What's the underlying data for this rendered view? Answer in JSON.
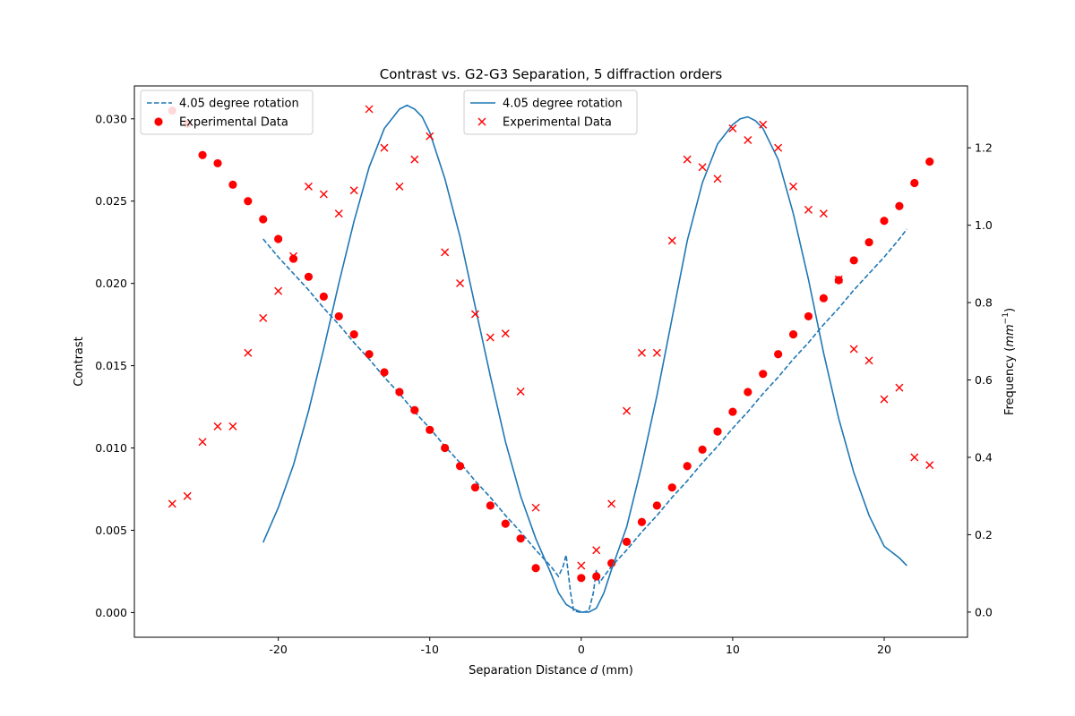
{
  "chart_data": {
    "type": "scatter",
    "title": "Contrast vs. G2-G3 Separation, 5 diffraction orders",
    "xlabel": "Separation Distance d (mm)",
    "ylabel_left": "Contrast",
    "ylabel_right": "Frequency (mm^-1)",
    "xlim": [
      -29.5,
      25.5
    ],
    "ylim_left": [
      -0.0015,
      0.032
    ],
    "ylim_right": [
      -0.065,
      1.36
    ],
    "xticks": [
      -20,
      -10,
      0,
      10,
      20
    ],
    "yticks_left": [
      0.0,
      0.005,
      0.01,
      0.015,
      0.02,
      0.025,
      0.03
    ],
    "yticks_left_labels": [
      "0.000",
      "0.005",
      "0.010",
      "0.015",
      "0.020",
      "0.025",
      "0.030"
    ],
    "yticks_right": [
      0.0,
      0.2,
      0.4,
      0.6,
      0.8,
      1.0,
      1.2
    ],
    "yticks_right_labels": [
      "0.0",
      "0.2",
      "0.4",
      "0.6",
      "0.8",
      "1.0",
      "1.2"
    ],
    "grid": false,
    "legends": [
      {
        "placement": "top-left",
        "entries": [
          "4.05 degree rotation",
          "Experimental Data"
        ]
      },
      {
        "placement": "top-center",
        "entries": [
          "4.05 degree rotation",
          "Experimental Data"
        ]
      }
    ],
    "series": [
      {
        "name": "4.05 degree rotation",
        "axis": "left",
        "style": "dashed-line",
        "color": "#1f77b4",
        "x": [
          -21,
          -20,
          -19,
          -18,
          -17,
          -16,
          -15,
          -14,
          -13,
          -12,
          -11,
          -10,
          -9,
          -8,
          -7,
          -6,
          -5,
          -4,
          -3,
          -2,
          -1.5,
          -1.2,
          -1,
          -0.7,
          -0.5,
          0,
          0.5,
          0.8,
          1,
          1.2,
          1.5,
          2,
          3,
          4,
          5,
          6,
          7,
          8,
          9,
          10,
          11,
          12,
          13,
          14,
          15,
          16,
          17,
          18,
          19,
          20,
          21,
          21.5
        ],
        "y": [
          0.0227,
          0.0216,
          0.0206,
          0.0196,
          0.0185,
          0.0175,
          0.0164,
          0.0154,
          0.0143,
          0.0133,
          0.0122,
          0.0112,
          0.0101,
          0.0091,
          0.008,
          0.007,
          0.0059,
          0.0049,
          0.0038,
          0.0028,
          0.0022,
          0.0028,
          0.0035,
          0.0012,
          0.0001,
          0.0,
          0.0001,
          0.0012,
          0.0026,
          0.0018,
          0.0022,
          0.0028,
          0.0038,
          0.0049,
          0.0059,
          0.007,
          0.008,
          0.0091,
          0.0101,
          0.0112,
          0.0122,
          0.0133,
          0.0143,
          0.0154,
          0.0164,
          0.0175,
          0.0185,
          0.0196,
          0.0206,
          0.0216,
          0.0227,
          0.0233
        ]
      },
      {
        "name": "Experimental Data",
        "axis": "left",
        "style": "filled-circle",
        "color": "#ff0000",
        "x": [
          -27,
          -26,
          -25,
          -24,
          -23,
          -22,
          -21,
          -20,
          -19,
          -18,
          -17,
          -16,
          -15,
          -14,
          -13,
          -12,
          -11,
          -10,
          -9,
          -8,
          -7,
          -6,
          -5,
          -4,
          -3,
          0,
          1,
          2,
          3,
          4,
          5,
          6,
          7,
          8,
          9,
          10,
          11,
          12,
          13,
          14,
          15,
          16,
          17,
          18,
          19,
          20,
          21,
          22,
          23
        ],
        "y": [
          0.0305,
          0.0297,
          0.0278,
          0.0273,
          0.026,
          0.025,
          0.0239,
          0.0227,
          0.0215,
          0.0204,
          0.0192,
          0.018,
          0.0169,
          0.0157,
          0.0146,
          0.0134,
          0.0123,
          0.0111,
          0.01,
          0.0089,
          0.0076,
          0.0065,
          0.0054,
          0.0045,
          0.0027,
          0.0021,
          0.0022,
          0.003,
          0.0043,
          0.0055,
          0.0065,
          0.0076,
          0.0089,
          0.0099,
          0.011,
          0.0122,
          0.0134,
          0.0145,
          0.0157,
          0.0169,
          0.018,
          0.0191,
          0.0202,
          0.0214,
          0.0225,
          0.0238,
          0.0247,
          0.0261,
          0.0274
        ]
      },
      {
        "name": "4.05 degree rotation",
        "axis": "right",
        "style": "solid-line",
        "color": "#1f77b4",
        "x": [
          -21,
          -20,
          -19,
          -18,
          -17,
          -16,
          -15,
          -14,
          -13,
          -12,
          -11.5,
          -11,
          -10.5,
          -10,
          -9,
          -8,
          -7,
          -6,
          -5,
          -4,
          -3,
          -2,
          -1.5,
          -1,
          -0.5,
          0,
          0.5,
          1,
          1.5,
          2,
          3,
          4,
          5,
          6,
          7,
          8,
          9,
          10,
          10.5,
          11,
          11.5,
          12,
          13,
          14,
          15,
          16,
          17,
          18,
          19,
          20,
          21,
          21.5
        ],
        "y": [
          0.18,
          0.27,
          0.38,
          0.52,
          0.68,
          0.85,
          1.01,
          1.15,
          1.25,
          1.3,
          1.31,
          1.3,
          1.28,
          1.24,
          1.12,
          0.97,
          0.79,
          0.61,
          0.44,
          0.3,
          0.19,
          0.1,
          0.05,
          0.02,
          0.008,
          0.0,
          0.0,
          0.01,
          0.05,
          0.11,
          0.22,
          0.38,
          0.56,
          0.76,
          0.96,
          1.11,
          1.21,
          1.26,
          1.275,
          1.28,
          1.27,
          1.25,
          1.17,
          1.03,
          0.86,
          0.67,
          0.5,
          0.36,
          0.25,
          0.17,
          0.14,
          0.12
        ]
      },
      {
        "name": "Experimental Data",
        "axis": "right",
        "style": "x-marker",
        "color": "#ff0000",
        "x": [
          -27,
          -26,
          -25,
          -24,
          -23,
          -22,
          -21,
          -20,
          -19,
          -18,
          -17,
          -16,
          -15,
          -14,
          -13,
          -12,
          -11,
          -10,
          -9,
          -8,
          -7,
          -6,
          -5,
          -4,
          -3,
          0,
          1,
          2,
          3,
          4,
          5,
          6,
          7,
          8,
          9,
          10,
          11,
          12,
          13,
          14,
          15,
          16,
          17,
          18,
          19,
          20,
          21,
          22,
          23
        ],
        "y": [
          0.28,
          0.3,
          0.44,
          0.48,
          0.48,
          0.67,
          0.76,
          0.83,
          0.92,
          1.1,
          1.08,
          1.03,
          1.09,
          1.3,
          1.2,
          1.1,
          1.17,
          1.23,
          0.93,
          0.85,
          0.77,
          0.71,
          0.72,
          0.57,
          0.27,
          0.12,
          0.16,
          0.28,
          0.52,
          0.67,
          0.67,
          0.96,
          1.17,
          1.15,
          1.12,
          1.25,
          1.22,
          1.26,
          1.2,
          1.1,
          1.04,
          1.03,
          0.86,
          0.68,
          0.65,
          0.55,
          0.58,
          0.4,
          0.38
        ]
      }
    ]
  }
}
